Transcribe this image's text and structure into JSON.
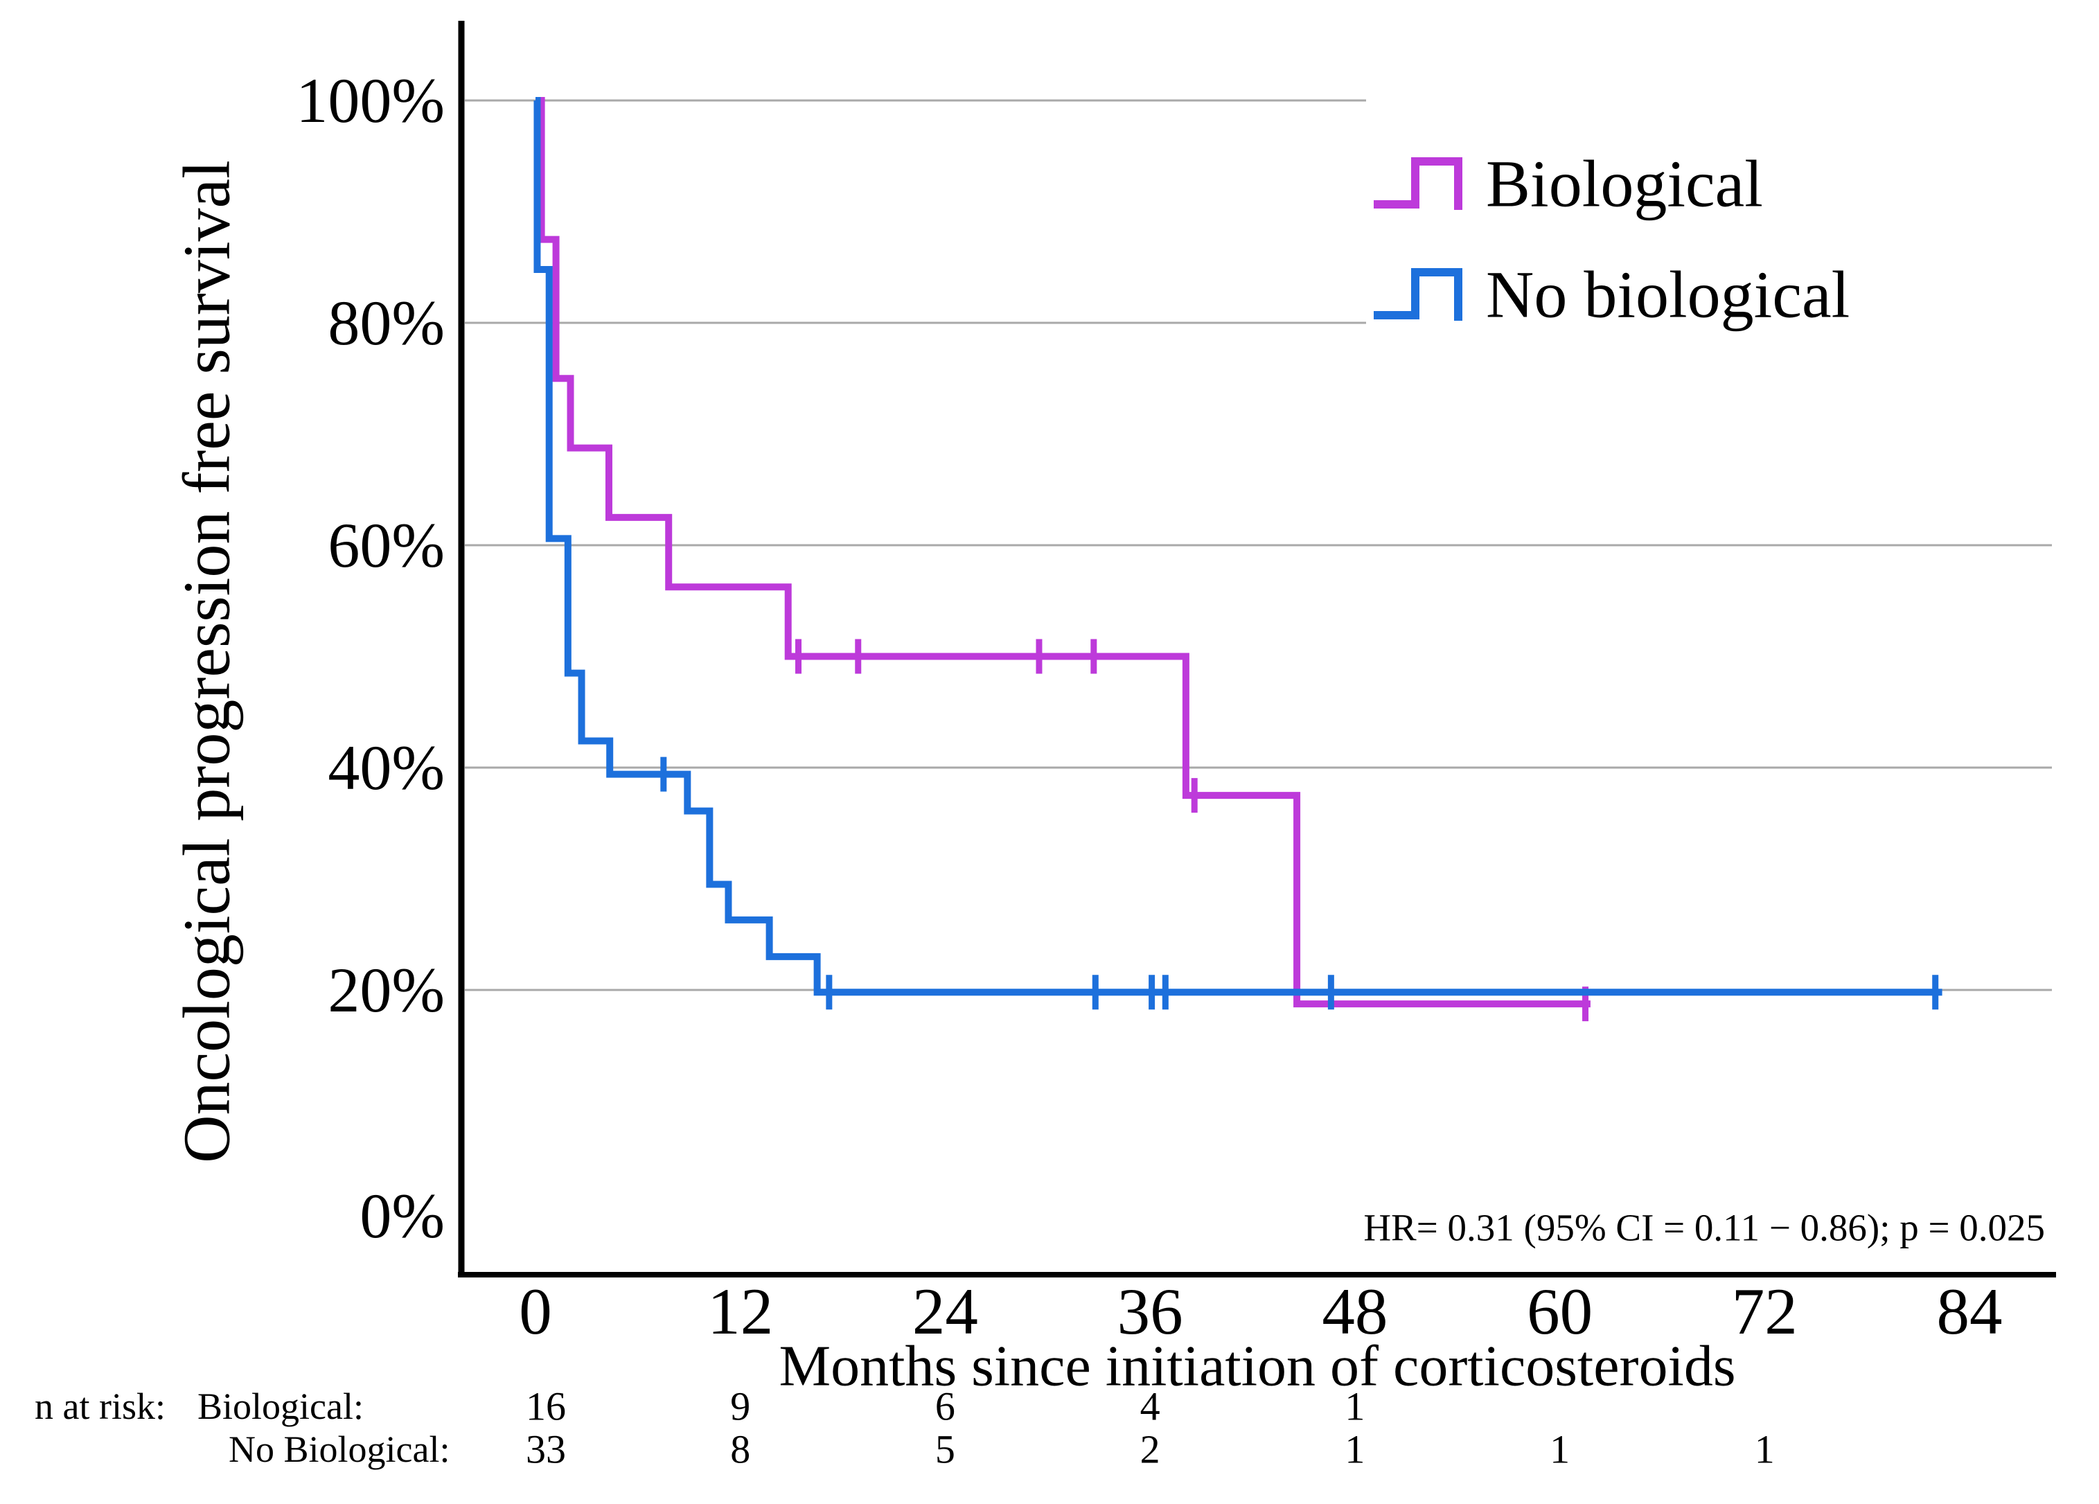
{
  "chart_data": {
    "type": "line",
    "subtype": "kaplan_meier_step_survival",
    "title": "",
    "xlabel": "Months since initiation of corticosteroids",
    "ylabel": "Oncological progression free survival",
    "xlim": [
      -4.3,
      89
    ],
    "ylim": [
      0,
      100
    ],
    "xticks": [
      0,
      12,
      24,
      36,
      48,
      60,
      72,
      84
    ],
    "yticks": [
      {
        "value": 100,
        "label": "100%"
      },
      {
        "value": 80,
        "label": "80%"
      },
      {
        "value": 60,
        "label": "60%"
      },
      {
        "value": 40,
        "label": "40%"
      },
      {
        "value": 20,
        "label": "20%"
      },
      {
        "value": 0,
        "label": "0%"
      }
    ],
    "grid": {
      "horizontal": true,
      "vertical": false,
      "color": "#a9a9a9"
    },
    "legend_position": "top-right",
    "annotation": "HR= 0.31 (95% CI = 0.11 − 0.86); p = 0.025",
    "series": [
      {
        "name": "Biological",
        "color": "#bd3ada",
        "steps_month_percent": [
          [
            0,
            100
          ],
          [
            0.35,
            87.5
          ],
          [
            1.2,
            75
          ],
          [
            2.05,
            68.75
          ],
          [
            4.3,
            62.5
          ],
          [
            7.8,
            56.25
          ],
          [
            14.8,
            50
          ],
          [
            38.1,
            37.5
          ],
          [
            44.6,
            18.75
          ]
        ],
        "end_month": 61.8,
        "censor_marks_month_percent": [
          [
            15.4,
            50
          ],
          [
            18.9,
            50
          ],
          [
            29.5,
            50
          ],
          [
            32.7,
            50
          ],
          [
            38.6,
            37.5
          ],
          [
            61.5,
            18.75
          ]
        ]
      },
      {
        "name": "No biological",
        "color": "#1d70dc",
        "steps_month_percent": [
          [
            0,
            100
          ],
          [
            0.1,
            84.8
          ],
          [
            0.8,
            60.6
          ],
          [
            1.9,
            48.5
          ],
          [
            2.7,
            42.4
          ],
          [
            4.35,
            39.4
          ],
          [
            8.9,
            36.1
          ],
          [
            10.2,
            29.5
          ],
          [
            11.3,
            26.3
          ],
          [
            13.7,
            23.0
          ],
          [
            16.5,
            19.8
          ]
        ],
        "end_month": 82.4,
        "censor_marks_month_percent": [
          [
            7.5,
            39.4
          ],
          [
            17.2,
            19.8
          ],
          [
            32.8,
            19.8
          ],
          [
            36.1,
            19.8
          ],
          [
            36.9,
            19.8
          ],
          [
            46.6,
            19.8
          ],
          [
            82.0,
            19.8
          ]
        ]
      }
    ]
  },
  "legend": {
    "items": [
      {
        "label": "Biological",
        "color": "#bd3ada"
      },
      {
        "label": "No biological",
        "color": "#1d70dc"
      }
    ]
  },
  "annotation": {
    "hr_text": "HR= 0.31 (95% CI = 0.11 − 0.86); p = 0.025"
  },
  "risk_table": {
    "heading": "n at risk:",
    "rows": [
      {
        "label": "Biological:",
        "color": "#e41fe4",
        "counts": [
          {
            "month": 0,
            "n": "16"
          },
          {
            "month": 12,
            "n": "9"
          },
          {
            "month": 24,
            "n": "6"
          },
          {
            "month": 36,
            "n": "4"
          },
          {
            "month": 48,
            "n": "1"
          }
        ]
      },
      {
        "label": "No Biological:",
        "color": "#3f93ef",
        "counts": [
          {
            "month": 0,
            "n": "33"
          },
          {
            "month": 12,
            "n": "8"
          },
          {
            "month": 24,
            "n": "5"
          },
          {
            "month": 36,
            "n": "2"
          },
          {
            "month": 48,
            "n": "1"
          },
          {
            "month": 60,
            "n": "1"
          },
          {
            "month": 72,
            "n": "1"
          }
        ]
      }
    ]
  }
}
